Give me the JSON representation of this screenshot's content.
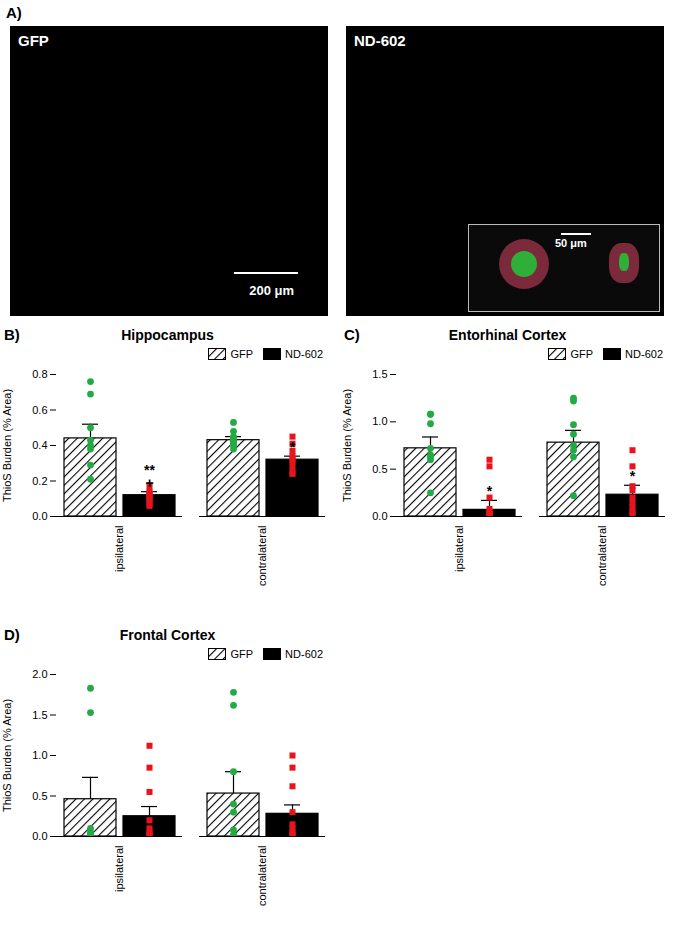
{
  "panel_a": {
    "label": "A)",
    "images": [
      {
        "title": "GFP",
        "scale_bar": "200 μm"
      },
      {
        "title": "ND-602",
        "inset_scale_bar": "50 μm"
      }
    ]
  },
  "chart_data": [
    {
      "type": "bar",
      "label": "B)",
      "title": "Hippocampus",
      "y_label": "ThioS Burden (% Area)",
      "categories": [
        "ipsilateral",
        "contralateral"
      ],
      "ylim": [
        0,
        0.8
      ],
      "yticks": [
        {
          "value": 0,
          "label": "0.0"
        },
        0.2,
        0.4,
        0.6,
        0.8
      ],
      "legend": "top-right",
      "series": [
        {
          "name": "GFP",
          "type": "bar",
          "color": "#000000",
          "line_style": "hatched",
          "values": [
            0.44,
            0.43
          ],
          "error": [
            0.08,
            0.02
          ],
          "points": {
            "color": "#22aa44",
            "marker": "circle",
            "values": [
              [
                0.76,
                0.69,
                0.5,
                0.43,
                0.4,
                0.38,
                0.29,
                0.21
              ],
              [
                0.53,
                0.48,
                0.45,
                0.44,
                0.43,
                0.42,
                0.41,
                0.4,
                0.38
              ]
            ]
          }
        },
        {
          "name": "ND-602",
          "type": "bar",
          "color": "#000000",
          "line_style": "solid",
          "values": [
            0.12,
            0.32
          ],
          "error": [
            0.02,
            0.02
          ],
          "points": {
            "color": "#e8141c",
            "marker": "square",
            "values": [
              [
                0.17,
                0.14,
                0.13,
                0.12,
                0.11,
                0.1,
                0.09,
                0.07,
                0.06
              ],
              [
                0.45,
                0.41,
                0.37,
                0.34,
                0.32,
                0.31,
                0.28,
                0.25,
                0.24
              ]
            ]
          }
        }
      ],
      "annotations": [
        {
          "category": "ipsilateral",
          "series": "ND-602",
          "text": "**"
        },
        {
          "category": "ipsilateral",
          "series": "ND-602",
          "text": "+"
        },
        {
          "category": "contralateral",
          "series": "ND-602",
          "text": "*"
        }
      ]
    },
    {
      "type": "bar",
      "label": "C)",
      "title": "Entorhinal Cortex",
      "y_label": "ThioS Burden (% Area)",
      "categories": [
        "ipsilateral",
        "contralateral"
      ],
      "ylim": [
        0,
        1.5
      ],
      "yticks": [
        {
          "value": 0,
          "label": "0.0"
        },
        0.5,
        {
          "value": 1,
          "label": "1.0"
        },
        1.5
      ],
      "legend": "top-right",
      "series": [
        {
          "name": "GFP",
          "type": "bar",
          "color": "#000000",
          "line_style": "hatched",
          "values": [
            0.72,
            0.78
          ],
          "error": [
            0.12,
            0.13
          ],
          "points": {
            "color": "#22aa44",
            "marker": "circle",
            "values": [
              [
                1.08,
                1.08,
                0.98,
                0.72,
                0.65,
                0.63,
                0.6,
                0.25
              ],
              [
                1.25,
                1.22,
                0.97,
                0.87,
                0.75,
                0.7,
                0.63,
                0.22
              ]
            ]
          }
        },
        {
          "name": "ND-602",
          "type": "bar",
          "color": "#000000",
          "line_style": "solid",
          "values": [
            0.07,
            0.23
          ],
          "error": [
            0.1,
            0.1
          ],
          "points": {
            "color": "#e8141c",
            "marker": "square",
            "values": [
              [
                0.6,
                0.53,
                0.2,
                0.08,
                0.05,
                0.03,
                0.02,
                0.01,
                0
              ],
              [
                0.7,
                0.53,
                0.32,
                0.28,
                0.2,
                0.15,
                0.1,
                0.05,
                0.03
              ]
            ]
          }
        }
      ],
      "annotations": [
        {
          "category": "ipsilateral",
          "series": "ND-602",
          "text": "*"
        },
        {
          "category": "contralateral",
          "series": "ND-602",
          "text": "*"
        }
      ]
    },
    {
      "type": "bar",
      "label": "D)",
      "title": "Frontal Cortex",
      "y_label": "ThioS Burden (% Area)",
      "categories": [
        "ipsilateral",
        "contralateral"
      ],
      "ylim": [
        0,
        2
      ],
      "yticks": [
        {
          "value": 0,
          "label": "0.0"
        },
        0.5,
        {
          "value": 1,
          "label": "1.0"
        },
        1.5,
        {
          "value": 2,
          "label": "2.0"
        }
      ],
      "legend": "top-right",
      "series": [
        {
          "name": "GFP",
          "type": "bar",
          "color": "#000000",
          "line_style": "hatched",
          "values": [
            0.46,
            0.53
          ],
          "error": [
            0.27,
            0.27
          ],
          "points": {
            "color": "#22aa44",
            "marker": "circle",
            "values": [
              [
                1.83,
                1.53,
                0.1,
                0.05,
                0.03,
                0.02,
                0.01,
                0.01
              ],
              [
                1.78,
                1.62,
                0.8,
                0.4,
                0.3,
                0.08,
                0.02,
                0.01
              ]
            ]
          }
        },
        {
          "name": "ND-602",
          "type": "bar",
          "color": "#000000",
          "line_style": "solid",
          "values": [
            0.25,
            0.28
          ],
          "error": [
            0.12,
            0.11
          ],
          "points": {
            "color": "#e8141c",
            "marker": "square",
            "values": [
              [
                1.12,
                0.85,
                0.55,
                0.2,
                0.1,
                0.05,
                0.02,
                0.01,
                0
              ],
              [
                1,
                0.85,
                0.62,
                0.3,
                0.15,
                0.1,
                0.05,
                0.02,
                0.01
              ]
            ]
          }
        }
      ],
      "annotations": []
    }
  ]
}
